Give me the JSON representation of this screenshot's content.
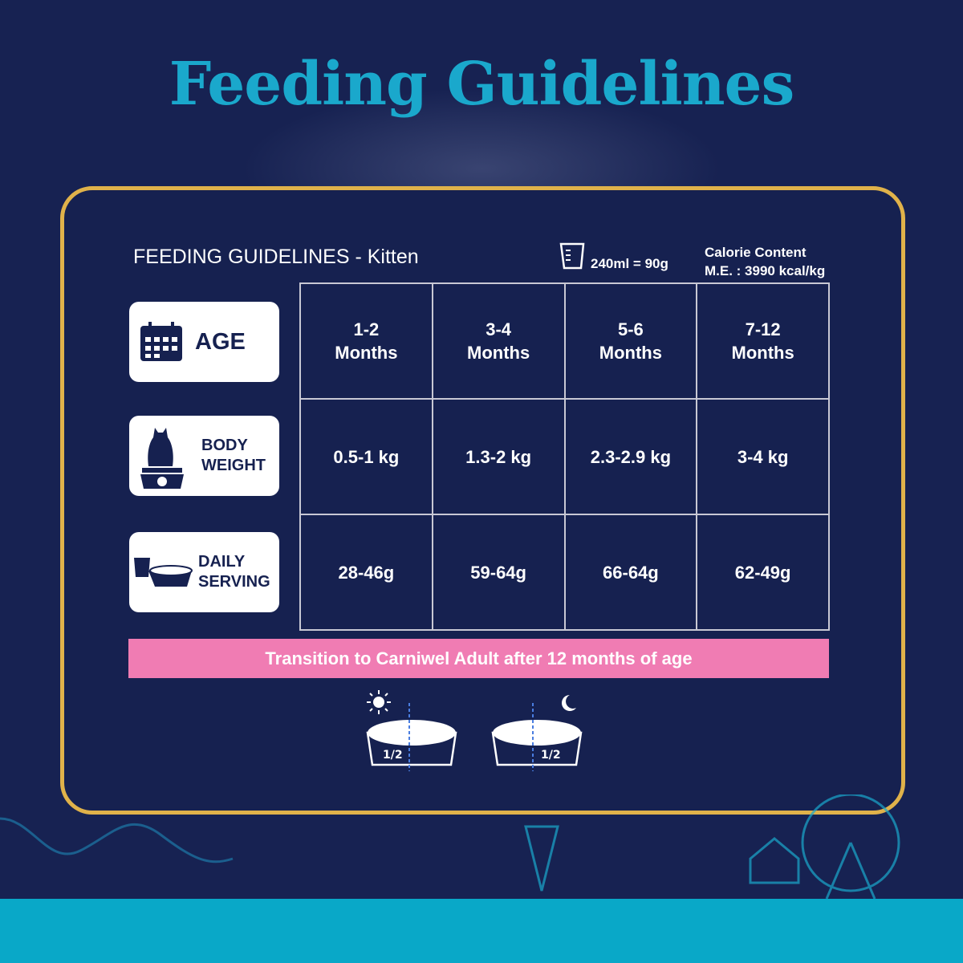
{
  "title": "Feeding Guidelines",
  "subtitle": "FEEDING GUIDELINES - Kitten",
  "measure": "240ml = 90g",
  "calorie": {
    "label": "Calorie Content",
    "value": "M.E. : 3990 kcal/kg"
  },
  "labels": {
    "age": "AGE",
    "body_weight": [
      "BODY",
      "WEIGHT"
    ],
    "daily_serving": [
      "DAILY",
      "SERVING"
    ]
  },
  "table": {
    "age": [
      [
        "1-2",
        "Months"
      ],
      [
        "3-4",
        "Months"
      ],
      [
        "5-6",
        "Months"
      ],
      [
        "7-12",
        "Months"
      ]
    ],
    "weight": [
      "0.5-1 kg",
      "1.3-2 kg",
      "2.3-2.9 kg",
      "3-4 kg"
    ],
    "serving": [
      "28-46g",
      "59-64g",
      "66-64g",
      "62-49g"
    ]
  },
  "transition": "Transition to Carniwel Adult after 12 months of age",
  "bowls": [
    {
      "icon": "sun-icon",
      "portion": "1/2"
    },
    {
      "icon": "moon-icon",
      "portion": "1/2"
    }
  ],
  "colors": {
    "background": "#172252",
    "title": "#1aa8cc",
    "border": "#e0b24a",
    "banner": "#f07cb3",
    "strip": "#09a8c8"
  }
}
